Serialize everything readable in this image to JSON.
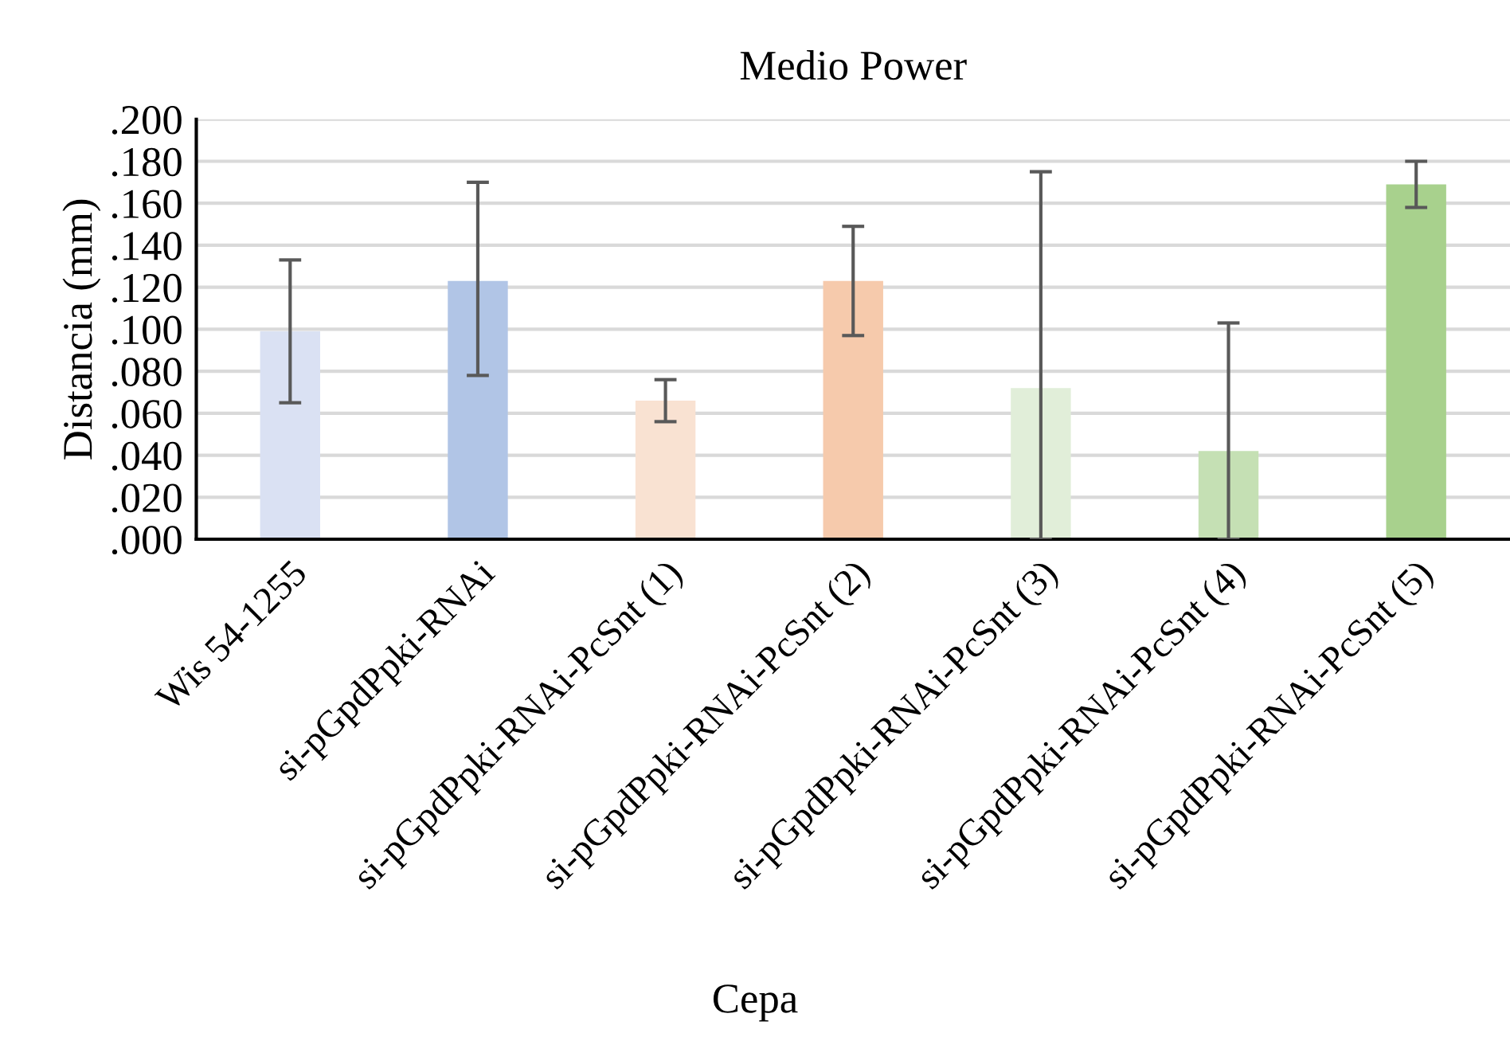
{
  "chart_data": {
    "type": "bar",
    "title": "Medio Power",
    "xlabel": "Cepa",
    "ylabel": "Distancia (mm)",
    "categories": [
      "Wis 54-1255",
      "si-pGpdPpki-RNAi",
      "si-pGpdPpki-RNAi-PcSnt (1)",
      "si-pGpdPpki-RNAi-PcSnt (2)",
      "si-pGpdPpki-RNAi-PcSnt (3)",
      "si-pGpdPpki-RNAi-PcSnt (4)",
      "si-pGpdPpki-RNAi-PcSnt (5)"
    ],
    "values": [
      0.099,
      0.123,
      0.066,
      0.123,
      0.072,
      0.042,
      0.169
    ],
    "errors": [
      [
        0.065,
        0.133
      ],
      [
        0.078,
        0.17
      ],
      [
        0.056,
        0.076
      ],
      [
        0.097,
        0.149
      ],
      [
        0.0,
        0.175
      ],
      [
        0.0,
        0.103
      ],
      [
        0.158,
        0.18
      ]
    ],
    "colors": [
      "#dae1f3",
      "#b1c5e6",
      "#f9e2d2",
      "#f6caac",
      "#e1eed9",
      "#c5e0b4",
      "#a8d18d"
    ],
    "ylim": [
      0,
      0.2
    ],
    "yticks": [
      {
        "value": 0,
        "label": ".000"
      },
      {
        "value": 0.02,
        "label": ".020"
      },
      {
        "value": 0.04,
        "label": ".040"
      },
      {
        "value": 0.06,
        "label": ".060"
      },
      {
        "value": 0.08,
        "label": ".080"
      },
      {
        "value": 0.1,
        "label": ".100"
      },
      {
        "value": 0.12,
        "label": ".120"
      },
      {
        "value": 0.14,
        "label": ".140"
      },
      {
        "value": 0.16,
        "label": ".160"
      },
      {
        "value": 0.18,
        "label": ".180"
      },
      {
        "value": 0.2,
        "label": ".200"
      }
    ],
    "grid": "y"
  }
}
